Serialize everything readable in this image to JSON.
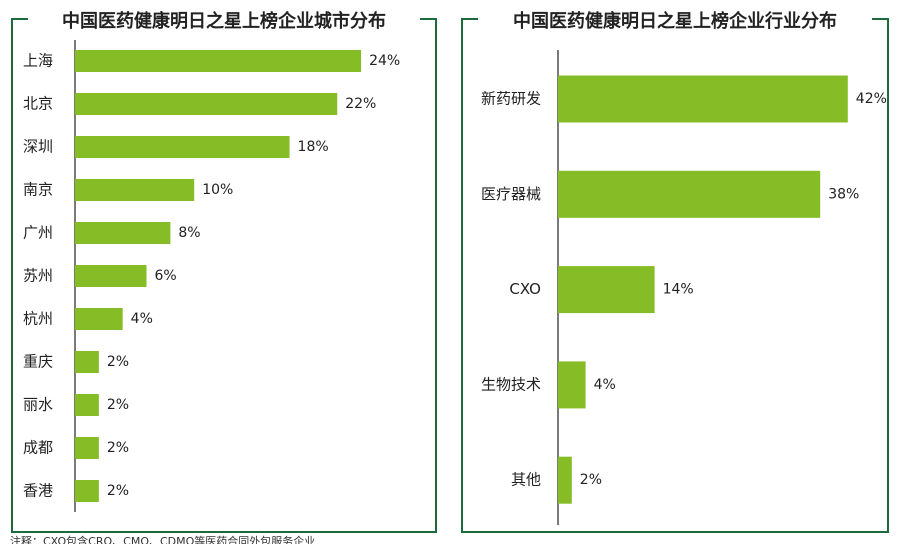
{
  "chart_data": [
    {
      "type": "bar",
      "title": "中国医药健康明日之星上榜企业城市分布",
      "orientation": "horizontal",
      "color": "#86bc25",
      "categories": [
        "上海",
        "北京",
        "深圳",
        "南京",
        "广州",
        "苏州",
        "杭州",
        "重庆",
        "丽水",
        "成都",
        "香港"
      ],
      "values": [
        24,
        22,
        18,
        10,
        8,
        6,
        4,
        2,
        2,
        2,
        2
      ],
      "value_labels": [
        "24%",
        "22%",
        "18%",
        "10%",
        "8%",
        "6%",
        "4%",
        "2%",
        "2%",
        "2%",
        "2%"
      ]
    },
    {
      "type": "bar",
      "title": "中国医药健康明日之星上榜企业行业分布",
      "orientation": "horizontal",
      "color": "#86bc25",
      "categories": [
        "新药研发",
        "医疗器械",
        "CXO",
        "生物技术",
        "其他"
      ],
      "values": [
        42,
        38,
        14,
        4,
        2
      ],
      "value_labels": [
        "42%",
        "38%",
        "14%",
        "4%",
        "2%"
      ]
    }
  ],
  "note": "注释：CXO包含CRO、CMO、CDMO等医药合同外包服务企业"
}
